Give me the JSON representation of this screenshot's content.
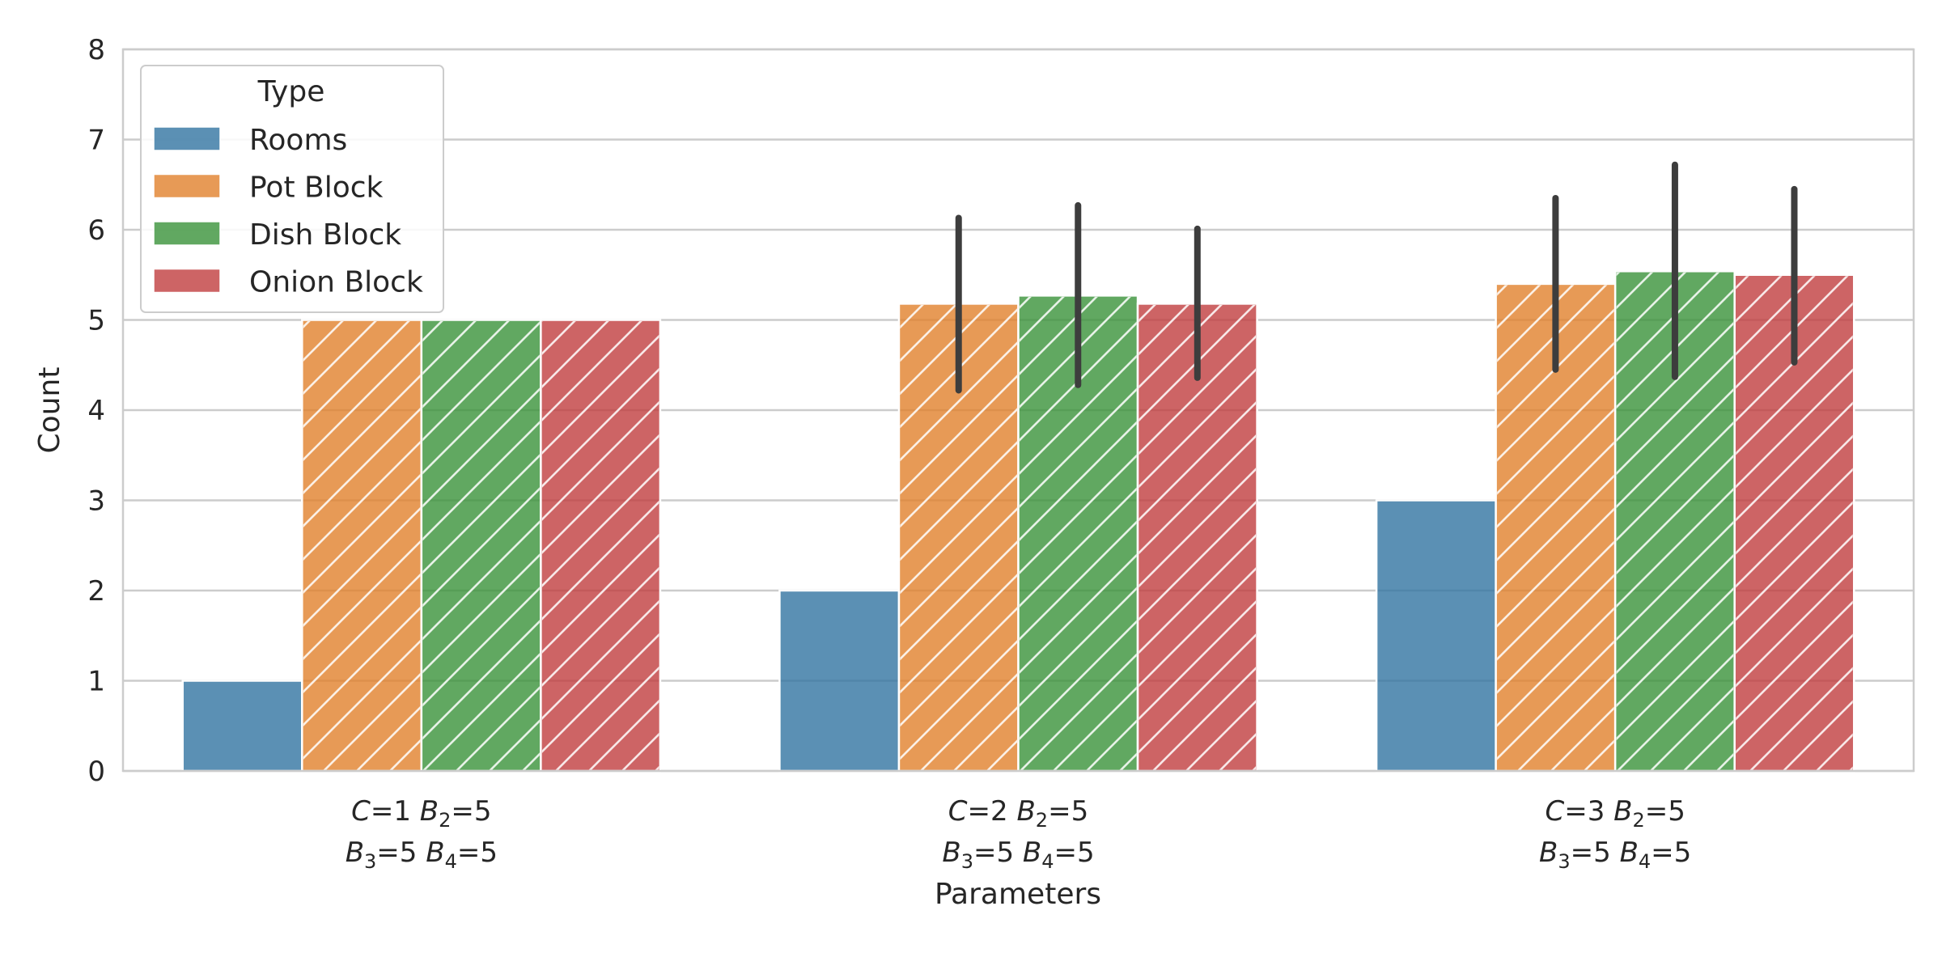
{
  "chart_data": {
    "type": "bar",
    "xlabel": "Parameters",
    "ylabel": "Count",
    "ylim": [
      0,
      8
    ],
    "yticks": [
      0,
      1,
      2,
      3,
      4,
      5,
      6,
      7,
      8
    ],
    "grid": true,
    "legend": {
      "title": "Type",
      "position": "top-left"
    },
    "categories": [
      {
        "line1": [
          {
            "t": "C",
            "i": true
          },
          {
            "t": "=1 "
          },
          {
            "t": "B",
            "i": true
          },
          {
            "t": "2",
            "sub": true
          },
          {
            "t": "=5"
          }
        ],
        "line2": [
          {
            "t": "B",
            "i": true
          },
          {
            "t": "3",
            "sub": true
          },
          {
            "t": "=5 "
          },
          {
            "t": "B",
            "i": true
          },
          {
            "t": "4",
            "sub": true
          },
          {
            "t": "=5"
          }
        ]
      },
      {
        "line1": [
          {
            "t": "C",
            "i": true
          },
          {
            "t": "=2 "
          },
          {
            "t": "B",
            "i": true
          },
          {
            "t": "2",
            "sub": true
          },
          {
            "t": "=5"
          }
        ],
        "line2": [
          {
            "t": "B",
            "i": true
          },
          {
            "t": "3",
            "sub": true
          },
          {
            "t": "=5 "
          },
          {
            "t": "B",
            "i": true
          },
          {
            "t": "4",
            "sub": true
          },
          {
            "t": "=5"
          }
        ]
      },
      {
        "line1": [
          {
            "t": "C",
            "i": true
          },
          {
            "t": "=3 "
          },
          {
            "t": "B",
            "i": true
          },
          {
            "t": "2",
            "sub": true
          },
          {
            "t": "=5"
          }
        ],
        "line2": [
          {
            "t": "B",
            "i": true
          },
          {
            "t": "3",
            "sub": true
          },
          {
            "t": "=5 "
          },
          {
            "t": "B",
            "i": true
          },
          {
            "t": "4",
            "sub": true
          },
          {
            "t": "=5"
          }
        ]
      }
    ],
    "series": [
      {
        "name": "Rooms",
        "color": "#3274a1",
        "hatch": false,
        "values": [
          1,
          2,
          3
        ],
        "err_low": [
          null,
          null,
          null
        ],
        "err_high": [
          null,
          null,
          null
        ]
      },
      {
        "name": "Pot Block",
        "color": "#e1812c",
        "hatch": true,
        "values": [
          5.0,
          5.18,
          5.4
        ],
        "err_low": [
          null,
          4.22,
          4.45
        ],
        "err_high": [
          null,
          6.13,
          6.35
        ]
      },
      {
        "name": "Dish Block",
        "color": "#3a923a",
        "hatch": true,
        "values": [
          5.0,
          5.27,
          5.54
        ],
        "err_low": [
          null,
          4.28,
          4.37
        ],
        "err_high": [
          null,
          6.27,
          6.72
        ]
      },
      {
        "name": "Onion Block",
        "color": "#c03d3e",
        "hatch": true,
        "values": [
          5.0,
          5.18,
          5.5
        ],
        "err_low": [
          null,
          4.36,
          4.53
        ],
        "err_high": [
          null,
          6.01,
          6.45
        ]
      }
    ]
  }
}
